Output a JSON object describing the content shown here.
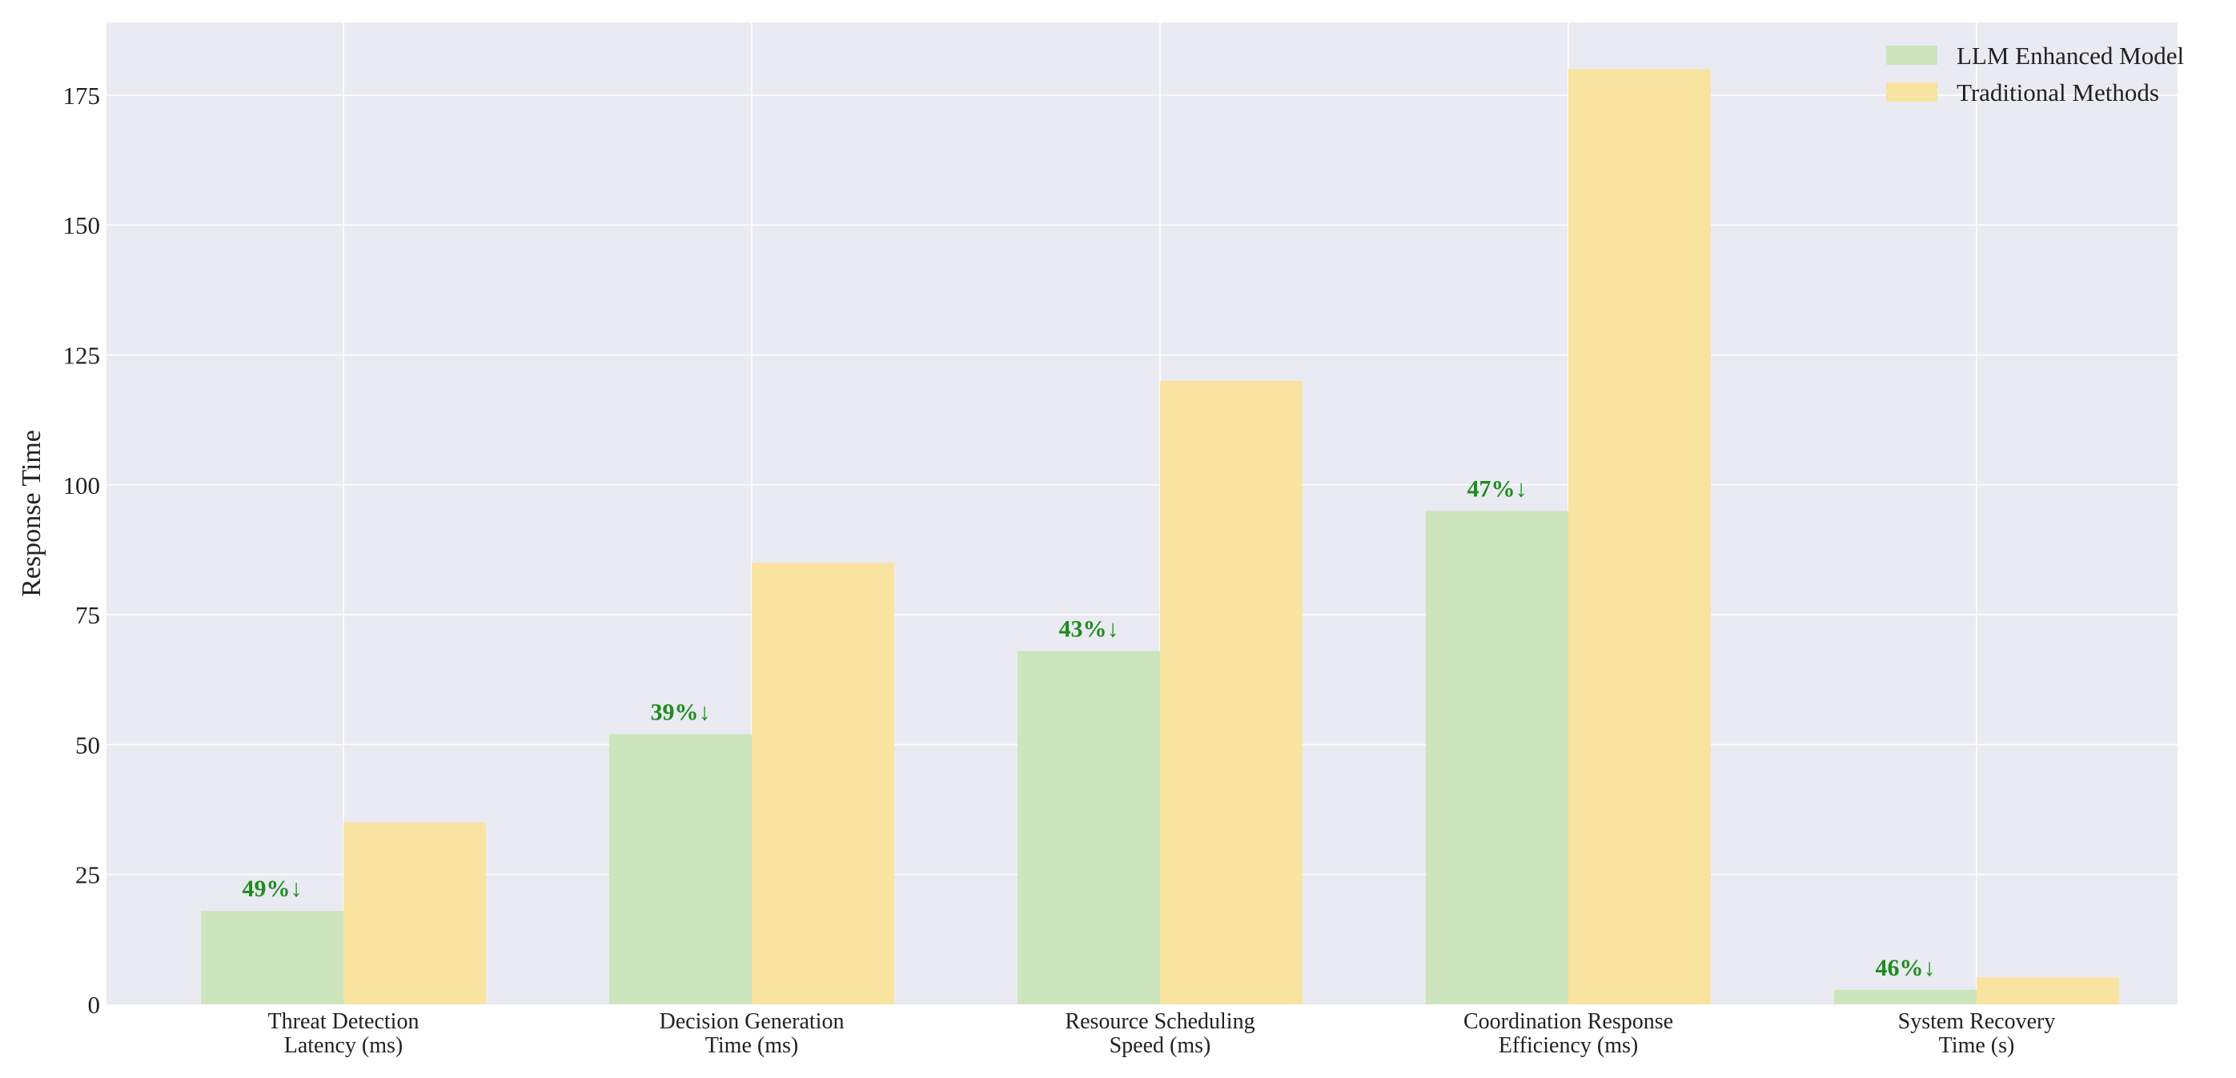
{
  "chart_data": {
    "type": "bar",
    "categories": [
      [
        "Threat Detection",
        "Latency (ms)"
      ],
      [
        "Decision Generation",
        "Time (ms)"
      ],
      [
        "Resource Scheduling",
        "Speed (ms)"
      ],
      [
        "Coordination Response",
        "Efficiency (ms)"
      ],
      [
        "System Recovery",
        "Time (s)"
      ]
    ],
    "series": [
      {
        "name": "LLM Enhanced Model",
        "values": [
          18,
          52,
          68,
          95,
          2.8
        ],
        "color": "#cce5bd"
      },
      {
        "name": "Traditional Methods",
        "values": [
          35,
          85,
          120,
          180,
          5.2
        ],
        "color": "#f8e3a1"
      }
    ],
    "annotations": [
      "49%↓",
      "39%↓",
      "43%↓",
      "47%↓",
      "46%↓"
    ],
    "annotation_color": "#1e8c1e",
    "ylabel": "Response Time",
    "xlabel": "",
    "ylim": [
      0,
      189
    ],
    "yticks": [
      0,
      25,
      50,
      75,
      100,
      125,
      150,
      175
    ],
    "grid": true,
    "legend_position": "top-right",
    "background_color": "#eaeaf2",
    "grid_color": "#ffffff"
  }
}
